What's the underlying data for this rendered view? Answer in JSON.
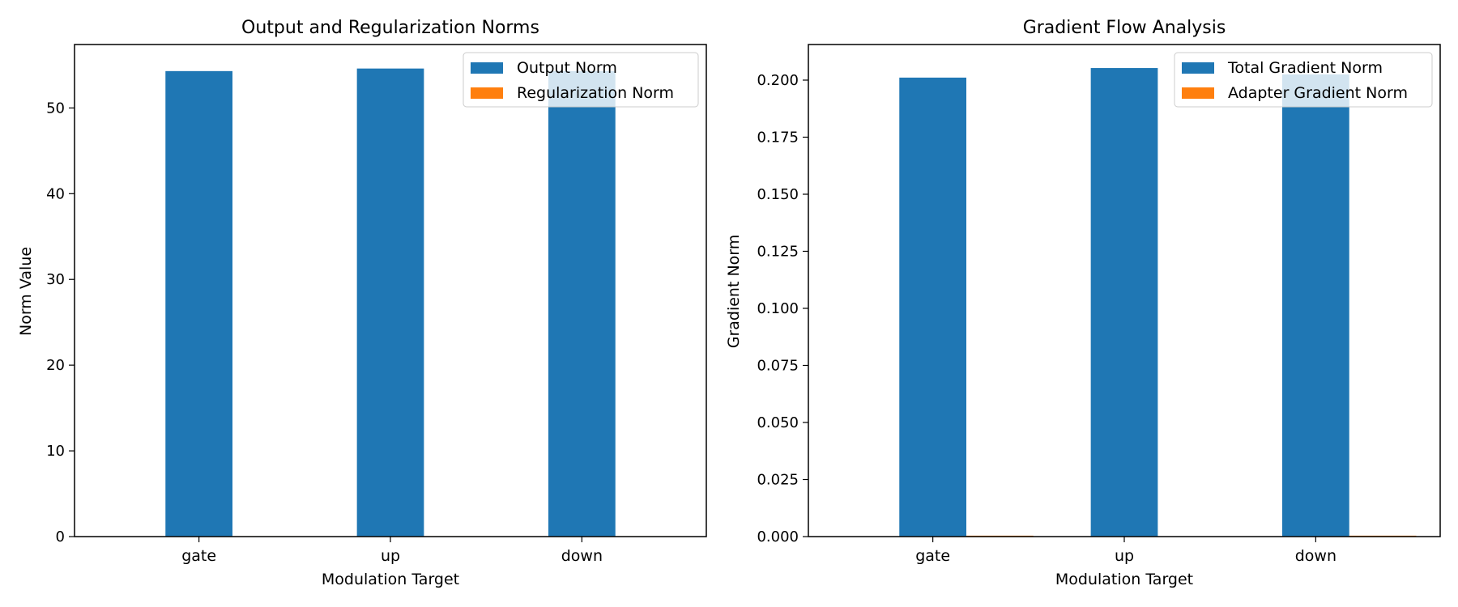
{
  "chart_data": [
    {
      "type": "bar",
      "title": "Output and Regularization Norms",
      "xlabel": "Modulation Target",
      "ylabel": "Norm Value",
      "categories": [
        "gate",
        "up",
        "down"
      ],
      "ylim": [
        0,
        57.4
      ],
      "yticks": [
        0,
        10,
        20,
        30,
        40,
        50
      ],
      "tick_format": "int",
      "legend_position": "upper right",
      "series": [
        {
          "name": "Output Norm",
          "values": [
            54.3,
            54.6,
            54.3
          ],
          "color": "#1f77b4"
        },
        {
          "name": "Regularization Norm",
          "values": [
            0.05,
            0.05,
            0.05
          ],
          "color": "#ff7f0e"
        }
      ]
    },
    {
      "type": "bar",
      "title": "Gradient Flow Analysis",
      "xlabel": "Modulation Target",
      "ylabel": "Gradient Norm",
      "categories": [
        "gate",
        "up",
        "down"
      ],
      "ylim": [
        0,
        0.2156
      ],
      "yticks": [
        0,
        0.025,
        0.05,
        0.075,
        0.1,
        0.125,
        0.15,
        0.175,
        0.2
      ],
      "tick_format": "3dp",
      "legend_position": "upper right",
      "series": [
        {
          "name": "Total Gradient Norm",
          "values": [
            0.2011,
            0.2053,
            0.2025
          ],
          "color": "#1f77b4"
        },
        {
          "name": "Adapter Gradient Norm",
          "values": [
            0.0004,
            0.0001,
            0.0004
          ],
          "color": "#ff7f0e"
        }
      ]
    }
  ]
}
